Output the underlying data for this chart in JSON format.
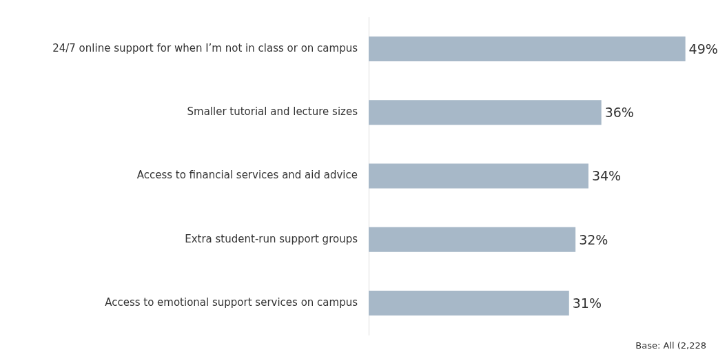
{
  "chart_data": {
    "type": "bar",
    "orientation": "horizontal",
    "categories": [
      "24/7 online support for when I’m not in class or on campus",
      "Smaller tutorial and lecture sizes",
      "Access to financial services and aid advice",
      "Extra student-run support groups",
      "Access to emotional support services on campus"
    ],
    "values": [
      49,
      36,
      34,
      32,
      31
    ],
    "value_labels": [
      "49%",
      "36%",
      "34%",
      "32%",
      "31%"
    ],
    "color": "#a7b8c8",
    "tick_labels": "y",
    "grid": false,
    "legend": false,
    "annotations": [
      "Base: All (2,228"
    ]
  }
}
